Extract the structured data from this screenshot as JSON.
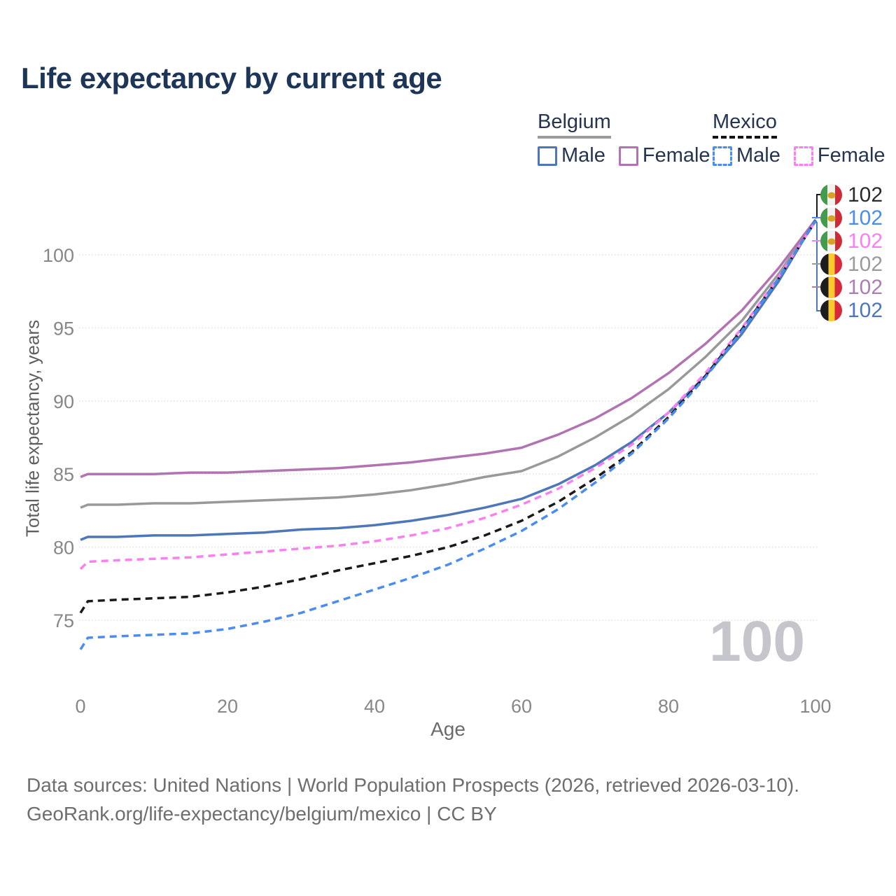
{
  "title": "Life expectancy by current age",
  "legend": {
    "belgium": {
      "label": "Belgium",
      "male": "Male",
      "female": "Female"
    },
    "mexico": {
      "label": "Mexico",
      "male": "Male",
      "female": "Female"
    }
  },
  "colors": {
    "belgium_male": "#4d77b8",
    "belgium_female": "#b173b1",
    "belgium_total": "#999999",
    "mexico_male": "#4a8cf0",
    "mexico_female": "#f980f0",
    "mexico_total": "#1a1a1a"
  },
  "watermark": "100",
  "footer": {
    "line1": "Data sources: United Nations | World Population Prospects (2026, retrieved 2026-03-10).",
    "line2": "GeoRank.org/life-expectancy/belgium/mexico | CC BY"
  },
  "chart_data": {
    "type": "line",
    "title": "Life expectancy by current age",
    "xlabel": "Age",
    "ylabel": "Total life expectancy, years",
    "xlim": [
      0,
      100
    ],
    "ylim": [
      72.5,
      103.5
    ],
    "x_ticks": [
      0,
      20,
      40,
      60,
      80,
      100
    ],
    "y_ticks": [
      75,
      80,
      85,
      90,
      95,
      100
    ],
    "grid": "horizontal-dotted",
    "legend_position": "top-right",
    "x": [
      0,
      1,
      5,
      10,
      15,
      20,
      25,
      30,
      35,
      40,
      45,
      50,
      55,
      60,
      65,
      70,
      75,
      80,
      85,
      90,
      95,
      100
    ],
    "series": [
      {
        "id": "belgium-total",
        "name": "Belgium Total",
        "country": "Belgium",
        "sex": "Both",
        "style": "solid",
        "color": "#999999",
        "values": [
          82.7,
          82.9,
          82.9,
          83.0,
          83.0,
          83.1,
          83.2,
          83.3,
          83.4,
          83.6,
          83.9,
          84.3,
          84.8,
          85.2,
          86.2,
          87.5,
          89.0,
          90.8,
          93.0,
          95.5,
          98.7,
          102.4
        ]
      },
      {
        "id": "belgium-female",
        "name": "Belgium Female",
        "country": "Belgium",
        "sex": "Female",
        "style": "solid",
        "color": "#b173b1",
        "values": [
          84.8,
          85.0,
          85.0,
          85.0,
          85.1,
          85.1,
          85.2,
          85.3,
          85.4,
          85.6,
          85.8,
          86.1,
          86.4,
          86.8,
          87.7,
          88.8,
          90.2,
          91.9,
          93.9,
          96.2,
          99.1,
          102.4
        ]
      },
      {
        "id": "belgium-male",
        "name": "Belgium Male",
        "country": "Belgium",
        "sex": "Male",
        "style": "solid",
        "color": "#4d77b8",
        "values": [
          80.5,
          80.7,
          80.7,
          80.8,
          80.8,
          80.9,
          81.0,
          81.2,
          81.3,
          81.5,
          81.8,
          82.2,
          82.7,
          83.3,
          84.3,
          85.6,
          87.2,
          89.2,
          91.7,
          94.6,
          98.2,
          102.4
        ]
      },
      {
        "id": "mexico-female",
        "name": "Mexico Female",
        "country": "Mexico",
        "sex": "Female",
        "style": "dashed",
        "color": "#f980f0",
        "values": [
          78.5,
          79.0,
          79.1,
          79.2,
          79.3,
          79.5,
          79.7,
          79.9,
          80.1,
          80.4,
          80.8,
          81.3,
          82.0,
          82.9,
          84.0,
          85.4,
          87.0,
          89.2,
          91.9,
          95.0,
          98.5,
          102.3
        ]
      },
      {
        "id": "mexico-total",
        "name": "Mexico Total",
        "country": "Mexico",
        "sex": "Both",
        "style": "dashed",
        "color": "#1a1a1a",
        "values": [
          75.5,
          76.3,
          76.4,
          76.5,
          76.6,
          76.9,
          77.3,
          77.8,
          78.4,
          78.9,
          79.4,
          80.0,
          80.8,
          81.8,
          83.1,
          84.7,
          86.5,
          88.9,
          91.7,
          94.9,
          98.4,
          102.3
        ]
      },
      {
        "id": "mexico-male",
        "name": "Mexico Male",
        "country": "Mexico",
        "sex": "Male",
        "style": "dashed",
        "color": "#4a8cf0",
        "values": [
          73.0,
          73.8,
          73.9,
          74.0,
          74.1,
          74.4,
          74.9,
          75.5,
          76.3,
          77.1,
          77.9,
          78.8,
          79.9,
          81.1,
          82.6,
          84.4,
          86.4,
          88.8,
          91.6,
          94.8,
          98.4,
          102.3
        ]
      }
    ],
    "end_labels": [
      {
        "flag": "mexico",
        "series": "Mexico Total",
        "value": "102",
        "color": "#2b2b2b"
      },
      {
        "flag": "mexico",
        "series": "Mexico Male",
        "value": "102",
        "color": "#4a8cf0"
      },
      {
        "flag": "mexico",
        "series": "Mexico Female",
        "value": "102",
        "color": "#f980f0"
      },
      {
        "flag": "belgium",
        "series": "Belgium Total",
        "value": "102",
        "color": "#9b9b9b"
      },
      {
        "flag": "belgium",
        "series": "Belgium Female",
        "value": "102",
        "color": "#ab7db3"
      },
      {
        "flag": "belgium",
        "series": "Belgium Male",
        "value": "102",
        "color": "#4c77be"
      }
    ]
  }
}
